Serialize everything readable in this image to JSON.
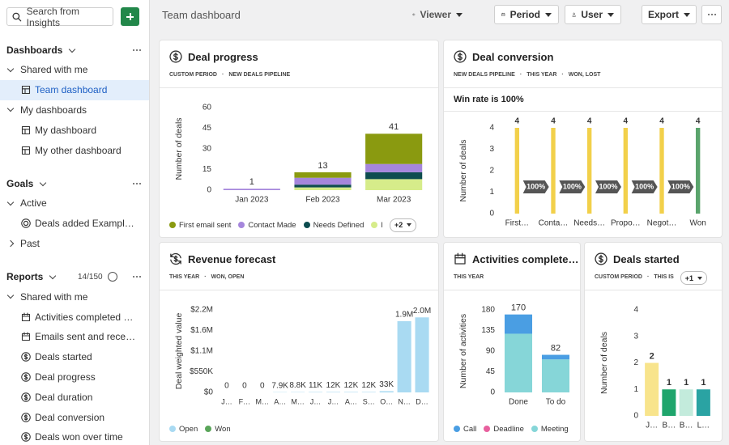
{
  "sidebar": {
    "search_placeholder": "Search from Insights",
    "sections": [
      {
        "title": "Dashboards",
        "items": [
          {
            "label": "Shared with me",
            "level": 0,
            "expanded": true
          },
          {
            "label": "Team dashboard",
            "level": 1,
            "icon": "grid",
            "selected": true
          },
          {
            "label": "My dashboards",
            "level": 0,
            "expanded": true
          },
          {
            "label": "My dashboard",
            "level": 1,
            "icon": "grid"
          },
          {
            "label": "My other dashboard",
            "level": 1,
            "icon": "grid"
          }
        ]
      },
      {
        "title": "Goals",
        "items": [
          {
            "label": "Active",
            "level": 0,
            "expanded": true
          },
          {
            "label": "Deals added Example t…",
            "level": 1,
            "icon": "target"
          },
          {
            "label": "Past",
            "level": 0,
            "expanded": false
          }
        ]
      },
      {
        "title": "Reports",
        "count": "14/150",
        "items": [
          {
            "label": "Shared with me",
            "level": 0,
            "expanded": true
          },
          {
            "label": "Activities completed an…",
            "level": 1,
            "icon": "calendar"
          },
          {
            "label": "Emails sent and received",
            "level": 1,
            "icon": "calendar"
          },
          {
            "label": "Deals started",
            "level": 1,
            "icon": "dollar"
          },
          {
            "label": "Deal progress",
            "level": 1,
            "icon": "dollar"
          },
          {
            "label": "Deal duration",
            "level": 1,
            "icon": "dollar"
          },
          {
            "label": "Deal conversion",
            "level": 1,
            "icon": "dollar"
          },
          {
            "label": "Deals won over time",
            "level": 1,
            "icon": "dollar"
          }
        ]
      }
    ]
  },
  "toolbar": {
    "title": "Team dashboard",
    "buttons": [
      {
        "label": "Viewer",
        "icon": "eye",
        "style": "plain"
      },
      {
        "label": "Period",
        "icon": "calendar",
        "style": "box"
      },
      {
        "label": "User",
        "icon": "person",
        "style": "box"
      },
      {
        "label": "Export",
        "style": "box"
      }
    ]
  },
  "widgets": [
    {
      "icon": "dollar",
      "title": "Deal progress",
      "tags": [
        "CUSTOM PERIOD",
        "NEW DEALS PIPELINE"
      ],
      "chart": {
        "type": "bar",
        "y_label": "Number of deals",
        "ylim": [
          0,
          60
        ],
        "yticks": [
          0,
          15,
          30,
          45,
          60
        ],
        "categories": [
          "Jan 2023",
          "Feb 2023",
          "Mar 2023"
        ],
        "series": [
          {
            "name": "First email sent",
            "color": "#8a9a10",
            "values": [
              0,
              4,
              22
            ]
          },
          {
            "name": "Contact Made",
            "color": "#a586dc",
            "values": [
              1,
              5,
              6
            ]
          },
          {
            "name": "Needs Defined",
            "color": "#0d4c4f",
            "values": [
              0,
              2,
              5
            ]
          },
          {
            "name": "Propo",
            "color": "#d6ec8a",
            "values": [
              0,
              2,
              8
            ]
          }
        ],
        "totals": [
          1,
          13,
          41
        ],
        "legend_more": "+2"
      }
    },
    {
      "icon": "dollar",
      "title": "Deal conversion",
      "tags": [
        "NEW DEALS PIPELINE",
        "THIS YEAR",
        "WON, LOST"
      ],
      "subtitle": "Win rate is 100%",
      "chart": {
        "type": "bar",
        "y_label": "Number of deals",
        "ylim": [
          0,
          4
        ],
        "yticks": [
          0,
          1,
          2,
          3,
          4
        ],
        "categories": [
          "First…",
          "Conta…",
          "Needs…",
          "Propo…",
          "Negot…",
          "Won"
        ],
        "values": [
          4,
          4,
          4,
          4,
          4,
          4
        ],
        "colors": [
          "#f2d04a",
          "#f2d04a",
          "#f2d04a",
          "#f2d04a",
          "#f2d04a",
          "#5aa46c"
        ],
        "conversion": {
          "values": [
            100,
            100,
            100,
            100,
            100
          ],
          "value_labels": [
            "100%",
            "100%",
            "100%",
            "100%",
            "100%"
          ]
        }
      }
    },
    {
      "icon": "refresh",
      "title": "Revenue forecast",
      "tags": [
        "THIS YEAR",
        "WON, OPEN"
      ],
      "chart": {
        "type": "bar",
        "y_label": "Deal weighted value",
        "ylim": [
          0,
          2200000
        ],
        "yticks": [
          {
            "value": 0,
            "label": "$0"
          },
          {
            "value": 550000,
            "label": "$550K"
          },
          {
            "value": 1100000,
            "label": "$1.1M"
          },
          {
            "value": 1650000,
            "label": "$1.6M"
          },
          {
            "value": 2200000,
            "label": "$2.2M"
          }
        ],
        "categories": [
          "J…",
          "F…",
          "M…",
          "A…",
          "M…",
          "J…",
          "J…",
          "A…",
          "S…",
          "O…",
          "N…",
          "D…"
        ],
        "series": [
          {
            "name": "Open",
            "color": "#a9daf2",
            "values": [
              0,
              0,
              0,
              7900,
              8800,
              11000,
              12000,
              12000,
              12000,
              33000,
              1900000,
              2000000
            ],
            "value_labels": [
              "0",
              "0",
              "0",
              "7.9K",
              "8.8K",
              "11K",
              "12K",
              "12K",
              "12K",
              "33K",
              "1.9M",
              "2.0M"
            ]
          },
          {
            "name": "Won",
            "color": "#5aa55a",
            "values": [
              0,
              0,
              0,
              0,
              0,
              0,
              0,
              0,
              0,
              0,
              0,
              0
            ]
          }
        ]
      }
    },
    {
      "icon": "calendar",
      "title": "Activities complete…",
      "tags": [
        "THIS YEAR"
      ],
      "chart": {
        "type": "bar",
        "y_label": "Number of activities",
        "ylim": [
          0,
          180
        ],
        "yticks": [
          0,
          45,
          90,
          135,
          180
        ],
        "categories": [
          "Done",
          "To do"
        ],
        "series": [
          {
            "name": "Call",
            "color": "#4a9ee3",
            "values": [
              42,
              10
            ]
          },
          {
            "name": "Deadline",
            "color": "#e8609e",
            "values": [
              0,
              0
            ]
          },
          {
            "name": "Meeting",
            "color": "#86d6d8",
            "values": [
              128,
              72
            ]
          }
        ],
        "totals": [
          170,
          82
        ]
      }
    },
    {
      "icon": "dollar",
      "title": "Deals started",
      "tags": [
        "CUSTOM PERIOD",
        "THIS IS"
      ],
      "tags_more": "+1",
      "chart": {
        "type": "bar",
        "y_label": "Number of deals",
        "ylim": [
          0,
          4
        ],
        "yticks": [
          0,
          1,
          2,
          3,
          4
        ],
        "categories": [
          "J…",
          "B…",
          "B…",
          "L…"
        ],
        "values": [
          2,
          1,
          1,
          1
        ],
        "colors": [
          "#f8e48c",
          "#1fa56c",
          "#c3ebdc",
          "#2aa3a3"
        ]
      }
    }
  ]
}
